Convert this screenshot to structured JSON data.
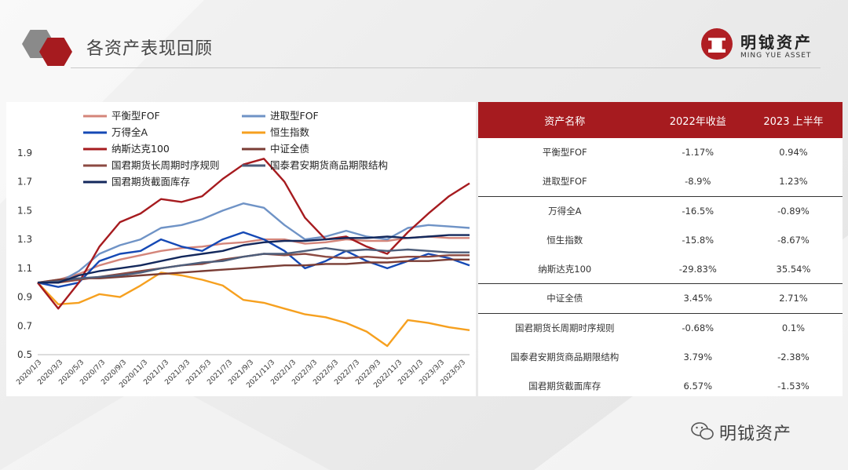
{
  "header": {
    "title": "各资产表现回顾"
  },
  "brand": {
    "name_cn": "明钺资产",
    "name_en": "MING YUE ASSET"
  },
  "footer": {
    "text": "明钺资产"
  },
  "colors": {
    "accent": "#a61b1f",
    "series": [
      "#d4857a",
      "#6f93c6",
      "#1549b5",
      "#f6a01f",
      "#a61b1f",
      "#7a3d35",
      "#8c4a42",
      "#4d5d7a",
      "#13285c"
    ]
  },
  "table": {
    "headers": [
      "资产名称",
      "2022年收益",
      "2023 上半年"
    ],
    "rows": [
      {
        "name": "平衡型FOF",
        "y2022": "-1.17%",
        "h2023": "0.94%",
        "group_end": false
      },
      {
        "name": "进取型FOF",
        "y2022": "-8.9%",
        "h2023": "1.23%",
        "group_end": true
      },
      {
        "name": "万得全A",
        "y2022": "-16.5%",
        "h2023": "-0.89%",
        "group_end": false
      },
      {
        "name": "恒生指数",
        "y2022": "-15.8%",
        "h2023": "-8.67%",
        "group_end": false
      },
      {
        "name": "纳斯达克100",
        "y2022": "-29.83%",
        "h2023": "35.54%",
        "group_end": true
      },
      {
        "name": "中证全债",
        "y2022": "3.45%",
        "h2023": "2.71%",
        "group_end": true
      },
      {
        "name": "国君期货长周期时序规则",
        "y2022": "-0.68%",
        "h2023": "0.1%",
        "group_end": false
      },
      {
        "name": "国泰君安期货商品期限结构",
        "y2022": "3.79%",
        "h2023": "-2.38%",
        "group_end": false
      },
      {
        "name": "国君期货截面库存",
        "y2022": "6.57%",
        "h2023": "-1.53%",
        "group_end": false
      }
    ]
  },
  "chart_data": {
    "type": "line",
    "ylim": [
      0.5,
      1.9
    ],
    "yticks": [
      "1.9",
      "1.7",
      "1.5",
      "1.3",
      "1.1",
      "0.9",
      "0.7",
      "0.5"
    ],
    "xticks": [
      "2020/1/3",
      "2020/3/3",
      "2020/5/3",
      "2020/7/3",
      "2020/9/3",
      "2020/11/3",
      "2021/1/3",
      "2021/3/3",
      "2021/5/3",
      "2021/7/3",
      "2021/9/3",
      "2021/11/3",
      "2022/1/3",
      "2022/3/3",
      "2022/5/3",
      "2022/7/3",
      "2022/9/3",
      "2022/11/3",
      "2023/1/3",
      "2023/3/3",
      "2023/5/3"
    ],
    "x": [
      "2020/1",
      "2020/3",
      "2020/5",
      "2020/7",
      "2020/9",
      "2020/11",
      "2021/1",
      "2021/3",
      "2021/5",
      "2021/7",
      "2021/9",
      "2021/11",
      "2022/1",
      "2022/3",
      "2022/5",
      "2022/7",
      "2022/9",
      "2022/11",
      "2023/1",
      "2023/3",
      "2023/5",
      "2023/6"
    ],
    "legend_placement": "top-left",
    "series": [
      {
        "name": "平衡型FOF",
        "values": [
          1.0,
          1.02,
          1.06,
          1.12,
          1.16,
          1.19,
          1.22,
          1.24,
          1.25,
          1.27,
          1.28,
          1.3,
          1.3,
          1.27,
          1.28,
          1.3,
          1.29,
          1.29,
          1.31,
          1.32,
          1.31,
          1.31
        ]
      },
      {
        "name": "进取型FOF",
        "values": [
          1.0,
          1.0,
          1.08,
          1.2,
          1.26,
          1.3,
          1.38,
          1.4,
          1.44,
          1.5,
          1.55,
          1.52,
          1.4,
          1.3,
          1.32,
          1.36,
          1.32,
          1.3,
          1.38,
          1.4,
          1.39,
          1.38
        ]
      },
      {
        "name": "万得全A",
        "values": [
          1.0,
          0.97,
          1.0,
          1.15,
          1.2,
          1.22,
          1.3,
          1.25,
          1.22,
          1.3,
          1.35,
          1.3,
          1.22,
          1.1,
          1.15,
          1.22,
          1.15,
          1.1,
          1.15,
          1.2,
          1.17,
          1.12
        ]
      },
      {
        "name": "恒生指数",
        "values": [
          1.0,
          0.85,
          0.86,
          0.92,
          0.9,
          0.98,
          1.07,
          1.05,
          1.02,
          0.98,
          0.88,
          0.86,
          0.82,
          0.78,
          0.76,
          0.72,
          0.66,
          0.56,
          0.74,
          0.72,
          0.69,
          0.67
        ]
      },
      {
        "name": "纳斯达克100",
        "values": [
          1.0,
          0.82,
          1.0,
          1.25,
          1.42,
          1.48,
          1.58,
          1.56,
          1.6,
          1.72,
          1.82,
          1.86,
          1.7,
          1.45,
          1.3,
          1.32,
          1.25,
          1.2,
          1.35,
          1.48,
          1.6,
          1.69
        ]
      },
      {
        "name": "中证全债",
        "values": [
          1.0,
          1.02,
          1.03,
          1.03,
          1.04,
          1.05,
          1.06,
          1.07,
          1.08,
          1.09,
          1.1,
          1.11,
          1.12,
          1.12,
          1.13,
          1.13,
          1.14,
          1.14,
          1.15,
          1.15,
          1.16,
          1.16
        ]
      },
      {
        "name": "国君期货长周期时序规则",
        "values": [
          1.0,
          1.0,
          1.02,
          1.04,
          1.06,
          1.08,
          1.1,
          1.12,
          1.13,
          1.16,
          1.18,
          1.2,
          1.19,
          1.2,
          1.18,
          1.17,
          1.18,
          1.17,
          1.18,
          1.18,
          1.19,
          1.19
        ]
      },
      {
        "name": "国泰君安期货商品期限结构",
        "values": [
          1.0,
          1.01,
          1.03,
          1.04,
          1.05,
          1.07,
          1.1,
          1.12,
          1.14,
          1.15,
          1.18,
          1.2,
          1.2,
          1.22,
          1.24,
          1.22,
          1.23,
          1.22,
          1.23,
          1.22,
          1.21,
          1.21
        ]
      },
      {
        "name": "国君期货截面库存",
        "values": [
          1.0,
          1.0,
          1.05,
          1.08,
          1.1,
          1.12,
          1.15,
          1.18,
          1.2,
          1.22,
          1.26,
          1.28,
          1.29,
          1.29,
          1.3,
          1.31,
          1.31,
          1.32,
          1.31,
          1.32,
          1.33,
          1.33
        ]
      }
    ]
  }
}
